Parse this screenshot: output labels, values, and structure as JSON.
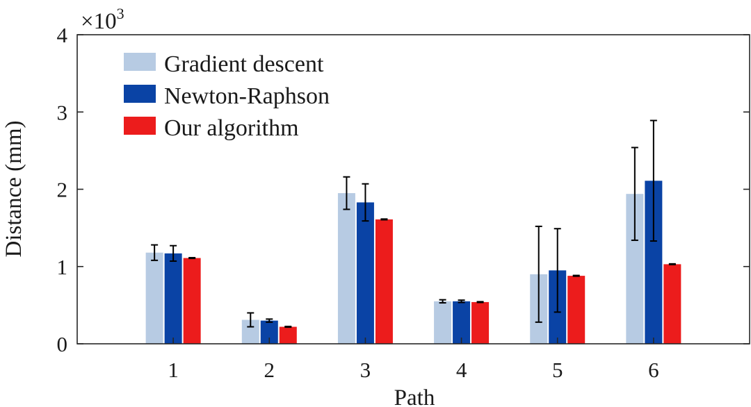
{
  "chart_data": {
    "type": "bar",
    "xlabel": "Path",
    "ylabel": "Distance (mm)",
    "y_exponent_label": "×10",
    "y_exponent_power": "3",
    "ylim": [
      0,
      4000
    ],
    "yticks": [
      0,
      1000,
      2000,
      3000,
      4000
    ],
    "ytick_labels": [
      "0",
      "1",
      "2",
      "3",
      "4"
    ],
    "xlim": [
      0,
      7
    ],
    "categories": [
      "1",
      "2",
      "3",
      "4",
      "5",
      "6"
    ],
    "legend_position": "top-left",
    "grid": false,
    "series": [
      {
        "name": "Gradient descent",
        "color": "#b7cbe3",
        "values": [
          1180,
          310,
          1950,
          550,
          900,
          1940
        ],
        "errors": [
          100,
          90,
          210,
          20,
          620,
          600
        ]
      },
      {
        "name": "Newton-Raphson",
        "color": "#0a43a5",
        "values": [
          1170,
          300,
          1830,
          550,
          950,
          2110
        ],
        "errors": [
          100,
          20,
          240,
          15,
          540,
          780
        ]
      },
      {
        "name": "Our algorithm",
        "color": "#ec1c1c",
        "values": [
          1110,
          220,
          1610,
          540,
          880,
          1030
        ],
        "errors": [
          5,
          5,
          5,
          5,
          5,
          5
        ]
      }
    ]
  }
}
